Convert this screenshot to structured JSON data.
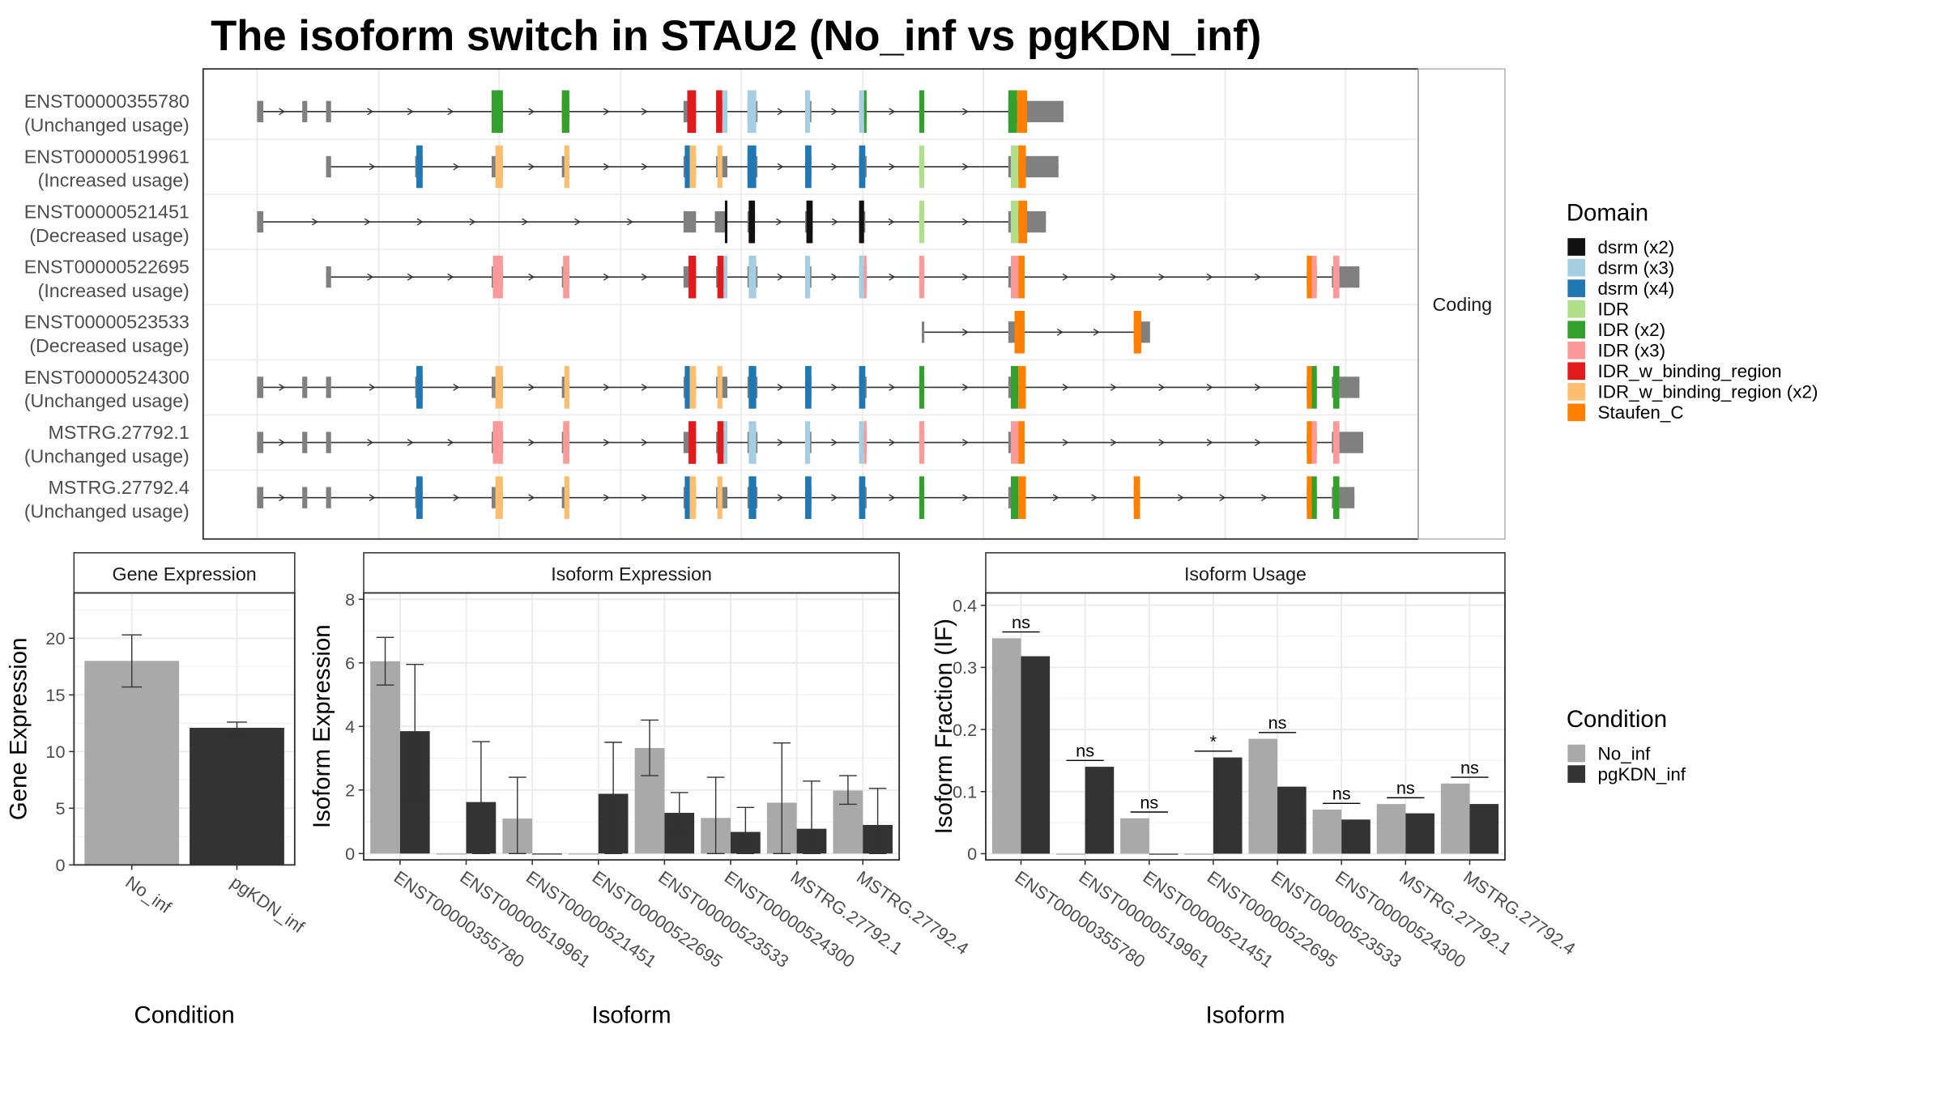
{
  "title": "The isoform switch in STAU2 (No_inf vs pgKDN_inf)",
  "colors": {
    "No_inf": "#a9a9a9",
    "pgKDN_inf": "#333333",
    "exon": "#808080"
  },
  "structure": {
    "facet_label": "Coding",
    "isoforms": [
      {
        "id": "ENST00000355780",
        "usage": "(Unchanged usage)",
        "start": 205,
        "end": 848,
        "exons": [
          [
            205,
            210
          ],
          [
            241,
            245
          ],
          [
            260,
            264
          ],
          [
            392,
            401
          ],
          [
            448,
            454
          ],
          [
            545,
            555
          ],
          [
            571,
            580
          ],
          [
            596,
            604
          ],
          [
            642,
            647
          ],
          [
            685,
            691
          ],
          [
            733,
            737
          ],
          [
            804,
            812
          ],
          [
            812,
            848
          ]
        ],
        "domains": [
          [
            392,
            401,
            "IDR (x2)"
          ],
          [
            448,
            454,
            "IDR (x2)"
          ],
          [
            548,
            555,
            "IDR_w_binding_region"
          ],
          [
            571,
            576,
            "IDR_w_binding_region"
          ],
          [
            576,
            580,
            "dsrm (x3)"
          ],
          [
            596,
            603,
            "dsrm (x3)"
          ],
          [
            642,
            646,
            "dsrm (x3)"
          ],
          [
            685,
            689,
            "dsrm (x3)"
          ],
          [
            689,
            691,
            "IDR (x2)"
          ],
          [
            733,
            737,
            "IDR (x2)"
          ],
          [
            804,
            811,
            "IDR (x2)"
          ],
          [
            811,
            819,
            "Staufen_C"
          ]
        ]
      },
      {
        "id": "ENST00000519961",
        "usage": "(Increased usage)",
        "start": 260,
        "end": 844,
        "exons": [
          [
            260,
            264
          ],
          [
            331,
            337
          ],
          [
            392,
            401
          ],
          [
            448,
            454
          ],
          [
            545,
            555
          ],
          [
            571,
            580
          ],
          [
            596,
            604
          ],
          [
            642,
            647
          ],
          [
            685,
            691
          ],
          [
            733,
            737
          ],
          [
            804,
            812
          ],
          [
            812,
            844
          ]
        ],
        "domains": [
          [
            332,
            337,
            "dsrm (x4)"
          ],
          [
            395,
            401,
            "IDR_w_binding_region (x2)"
          ],
          [
            450,
            454,
            "IDR_w_binding_region (x2)"
          ],
          [
            546,
            550,
            "dsrm (x4)"
          ],
          [
            550,
            555,
            "IDR_w_binding_region (x2)"
          ],
          [
            572,
            576,
            "IDR_w_binding_region (x2)"
          ],
          [
            596,
            603,
            "dsrm (x4)"
          ],
          [
            642,
            647,
            "dsrm (x4)"
          ],
          [
            685,
            690,
            "dsrm (x4)"
          ],
          [
            733,
            737,
            "IDR"
          ],
          [
            806,
            812,
            "IDR"
          ],
          [
            812,
            818,
            "Staufen_C"
          ]
        ]
      },
      {
        "id": "ENST00000521451",
        "usage": "(Decreased usage)",
        "start": 205,
        "end": 834,
        "exons": [
          [
            205,
            210
          ],
          [
            545,
            555
          ],
          [
            570,
            580
          ],
          [
            596,
            602
          ],
          [
            642,
            648
          ],
          [
            685,
            690
          ],
          [
            733,
            737
          ],
          [
            804,
            812
          ],
          [
            812,
            834
          ]
        ],
        "domains": [
          [
            578,
            580,
            "dsrm (x2)"
          ],
          [
            597,
            602,
            "dsrm (x2)"
          ],
          [
            643,
            648,
            "dsrm (x2)"
          ],
          [
            685,
            689,
            "dsrm (x2)"
          ],
          [
            733,
            737,
            "IDR"
          ],
          [
            806,
            812,
            "IDR"
          ],
          [
            812,
            819,
            "Staufen_C"
          ]
        ]
      },
      {
        "id": "ENST00000522695",
        "usage": "(Increased usage)",
        "start": 260,
        "end": 1084,
        "exons": [
          [
            260,
            264
          ],
          [
            392,
            401
          ],
          [
            448,
            454
          ],
          [
            545,
            555
          ],
          [
            571,
            580
          ],
          [
            596,
            604
          ],
          [
            642,
            647
          ],
          [
            685,
            691
          ],
          [
            733,
            737
          ],
          [
            804,
            812
          ],
          [
            1042,
            1050
          ],
          [
            1062,
            1068
          ],
          [
            1068,
            1084
          ]
        ],
        "domains": [
          [
            393,
            401,
            "IDR (x3)"
          ],
          [
            449,
            454,
            "IDR (x3)"
          ],
          [
            549,
            555,
            "IDR_w_binding_region"
          ],
          [
            572,
            577,
            "IDR_w_binding_region"
          ],
          [
            577,
            580,
            "dsrm (x3)"
          ],
          [
            597,
            603,
            "dsrm (x3)"
          ],
          [
            642,
            646,
            "dsrm (x3)"
          ],
          [
            685,
            689,
            "dsrm (x3)"
          ],
          [
            689,
            691,
            "IDR (x3)"
          ],
          [
            733,
            737,
            "IDR (x3)"
          ],
          [
            806,
            812,
            "IDR (x3)"
          ],
          [
            812,
            817,
            "Staufen_C"
          ],
          [
            1042,
            1046,
            "Staufen_C"
          ],
          [
            1046,
            1050,
            "IDR (x3)"
          ],
          [
            1063,
            1068,
            "IDR (x3)"
          ]
        ]
      },
      {
        "id": "ENST00000523533",
        "usage": "(Decreased usage)",
        "start": 735,
        "end": 917,
        "exons": [
          [
            735,
            737
          ],
          [
            804,
            812
          ],
          [
            812,
            817
          ],
          [
            904,
            910
          ],
          [
            910,
            917
          ]
        ],
        "domains": [
          [
            809,
            817,
            "Staufen_C"
          ],
          [
            904,
            910,
            "Staufen_C"
          ]
        ]
      },
      {
        "id": "ENST00000524300",
        "usage": "(Unchanged usage)",
        "start": 205,
        "end": 1084,
        "exons": [
          [
            205,
            210
          ],
          [
            241,
            245
          ],
          [
            260,
            264
          ],
          [
            331,
            337
          ],
          [
            392,
            401
          ],
          [
            448,
            454
          ],
          [
            545,
            555
          ],
          [
            571,
            580
          ],
          [
            596,
            604
          ],
          [
            642,
            647
          ],
          [
            685,
            691
          ],
          [
            733,
            737
          ],
          [
            804,
            812
          ],
          [
            1042,
            1050
          ],
          [
            1062,
            1068
          ],
          [
            1068,
            1084
          ]
        ],
        "domains": [
          [
            332,
            337,
            "dsrm (x4)"
          ],
          [
            395,
            401,
            "IDR_w_binding_region (x2)"
          ],
          [
            450,
            454,
            "IDR_w_binding_region (x2)"
          ],
          [
            546,
            550,
            "dsrm (x4)"
          ],
          [
            550,
            555,
            "IDR_w_binding_region (x2)"
          ],
          [
            572,
            576,
            "IDR_w_binding_region (x2)"
          ],
          [
            597,
            603,
            "dsrm (x4)"
          ],
          [
            642,
            647,
            "dsrm (x4)"
          ],
          [
            685,
            690,
            "dsrm (x4)"
          ],
          [
            733,
            737,
            "IDR (x2)"
          ],
          [
            806,
            812,
            "IDR (x2)"
          ],
          [
            812,
            818,
            "Staufen_C"
          ],
          [
            1042,
            1046,
            "Staufen_C"
          ],
          [
            1046,
            1050,
            "IDR (x2)"
          ],
          [
            1063,
            1068,
            "IDR (x2)"
          ]
        ]
      },
      {
        "id": "MSTRG.27792.1",
        "usage": "(Unchanged usage)",
        "start": 205,
        "end": 1087,
        "exons": [
          [
            205,
            210
          ],
          [
            241,
            245
          ],
          [
            260,
            264
          ],
          [
            392,
            401
          ],
          [
            448,
            454
          ],
          [
            545,
            555
          ],
          [
            571,
            580
          ],
          [
            596,
            604
          ],
          [
            642,
            647
          ],
          [
            685,
            691
          ],
          [
            733,
            737
          ],
          [
            804,
            812
          ],
          [
            1042,
            1050
          ],
          [
            1062,
            1068
          ],
          [
            1068,
            1087
          ]
        ],
        "domains": [
          [
            393,
            401,
            "IDR (x3)"
          ],
          [
            449,
            454,
            "IDR (x3)"
          ],
          [
            549,
            555,
            "IDR_w_binding_region"
          ],
          [
            572,
            577,
            "IDR_w_binding_region"
          ],
          [
            577,
            580,
            "dsrm (x3)"
          ],
          [
            597,
            603,
            "dsrm (x3)"
          ],
          [
            642,
            646,
            "dsrm (x3)"
          ],
          [
            685,
            689,
            "dsrm (x3)"
          ],
          [
            689,
            691,
            "IDR (x3)"
          ],
          [
            733,
            737,
            "IDR (x3)"
          ],
          [
            806,
            812,
            "IDR (x3)"
          ],
          [
            812,
            817,
            "Staufen_C"
          ],
          [
            1042,
            1046,
            "Staufen_C"
          ],
          [
            1046,
            1050,
            "IDR (x3)"
          ],
          [
            1063,
            1068,
            "IDR (x3)"
          ]
        ]
      },
      {
        "id": "MSTRG.27792.4",
        "usage": "(Unchanged usage)",
        "start": 205,
        "end": 1080,
        "exons": [
          [
            205,
            210
          ],
          [
            241,
            245
          ],
          [
            260,
            264
          ],
          [
            331,
            337
          ],
          [
            392,
            401
          ],
          [
            448,
            454
          ],
          [
            545,
            555
          ],
          [
            571,
            580
          ],
          [
            596,
            604
          ],
          [
            642,
            647
          ],
          [
            685,
            691
          ],
          [
            733,
            737
          ],
          [
            804,
            812
          ],
          [
            904,
            909
          ],
          [
            1042,
            1050
          ],
          [
            1062,
            1068
          ],
          [
            1068,
            1080
          ]
        ],
        "domains": [
          [
            332,
            337,
            "dsrm (x4)"
          ],
          [
            395,
            401,
            "IDR_w_binding_region (x2)"
          ],
          [
            450,
            454,
            "IDR_w_binding_region (x2)"
          ],
          [
            546,
            550,
            "dsrm (x4)"
          ],
          [
            550,
            555,
            "IDR_w_binding_region (x2)"
          ],
          [
            572,
            576,
            "IDR_w_binding_region (x2)"
          ],
          [
            597,
            603,
            "dsrm (x4)"
          ],
          [
            642,
            647,
            "dsrm (x4)"
          ],
          [
            685,
            690,
            "dsrm (x4)"
          ],
          [
            733,
            737,
            "IDR (x2)"
          ],
          [
            806,
            812,
            "IDR (x2)"
          ],
          [
            812,
            818,
            "Staufen_C"
          ],
          [
            904,
            909,
            "Staufen_C"
          ],
          [
            1042,
            1046,
            "Staufen_C"
          ],
          [
            1046,
            1050,
            "IDR (x2)"
          ],
          [
            1063,
            1068,
            "IDR (x2)"
          ]
        ]
      }
    ]
  },
  "legend_domain": {
    "title": "Domain",
    "items": [
      {
        "label": "dsrm (x2)",
        "color": "#111111"
      },
      {
        "label": "dsrm (x3)",
        "color": "#a6cee3"
      },
      {
        "label": "dsrm (x4)",
        "color": "#1f78b4"
      },
      {
        "label": "IDR",
        "color": "#b2df8a"
      },
      {
        "label": "IDR (x2)",
        "color": "#33a02c"
      },
      {
        "label": "IDR (x3)",
        "color": "#fb9a99"
      },
      {
        "label": "IDR_w_binding_region",
        "color": "#e31a1c"
      },
      {
        "label": "IDR_w_binding_region (x2)",
        "color": "#fdbf6f"
      },
      {
        "label": "Staufen_C",
        "color": "#ff7f00"
      }
    ]
  },
  "legend_condition": {
    "title": "Condition",
    "items": [
      {
        "label": "No_inf",
        "color": "#a9a9a9"
      },
      {
        "label": "pgKDN_inf",
        "color": "#333333"
      }
    ]
  },
  "chart_data": [
    {
      "type": "bar",
      "title": "Gene Expression",
      "xlabel": "Condition",
      "ylabel": "Gene Expression",
      "ylim": [
        0,
        24
      ],
      "yticks": [
        0,
        5,
        10,
        15,
        20
      ],
      "categories": [
        "No_inf",
        "pgKDN_inf"
      ],
      "values": [
        18.0,
        12.1
      ],
      "error_low": [
        15.7,
        11.5
      ],
      "error_high": [
        20.3,
        12.6
      ]
    },
    {
      "type": "bar",
      "title": "Isoform Expression",
      "xlabel": "Isoform",
      "ylabel": "Isoform Expression",
      "ylim": [
        -0.2,
        8.2
      ],
      "yticks": [
        0,
        2,
        4,
        6,
        8
      ],
      "categories": [
        "ENST00000355780",
        "ENST00000519961",
        "ENST00000521451",
        "ENST00000522695",
        "ENST00000523533",
        "ENST00000524300",
        "MSTRG.27792.1",
        "MSTRG.27792.4"
      ],
      "series": [
        {
          "name": "No_inf",
          "values": [
            6.05,
            0.0,
            1.1,
            0.0,
            3.32,
            1.12,
            1.6,
            1.98
          ],
          "error_low": [
            5.3,
            0.0,
            0.0,
            0.0,
            2.45,
            0.0,
            0.0,
            1.55
          ],
          "error_high": [
            6.8,
            0.0,
            2.4,
            0.0,
            4.2,
            2.4,
            3.48,
            2.45
          ]
        },
        {
          "name": "pgKDN_inf",
          "values": [
            3.85,
            1.62,
            0.0,
            1.88,
            1.28,
            0.68,
            0.78,
            0.9
          ],
          "error_low": [
            1.75,
            0.0,
            0.0,
            0.0,
            0.62,
            0.0,
            0.0,
            0.0
          ],
          "error_high": [
            5.95,
            3.52,
            0.0,
            3.5,
            1.92,
            1.45,
            2.28,
            2.05
          ]
        }
      ]
    },
    {
      "type": "bar",
      "title": "Isoform Usage",
      "xlabel": "Isoform",
      "ylabel": "Isoform Fraction (IF)",
      "ylim": [
        -0.01,
        0.42
      ],
      "yticks": [
        0.0,
        0.1,
        0.2,
        0.3,
        0.4
      ],
      "categories": [
        "ENST00000355780",
        "ENST00000519961",
        "ENST00000521451",
        "ENST00000522695",
        "ENST00000523533",
        "ENST00000524300",
        "MSTRG.27792.1",
        "MSTRG.27792.4"
      ],
      "series": [
        {
          "name": "No_inf",
          "values": [
            0.347,
            0.0,
            0.057,
            0.0,
            0.185,
            0.071,
            0.08,
            0.113
          ]
        },
        {
          "name": "pgKDN_inf",
          "values": [
            0.318,
            0.14,
            0.0,
            0.155,
            0.108,
            0.055,
            0.065,
            0.08
          ]
        }
      ],
      "significance": [
        "ns",
        "ns",
        "ns",
        "*",
        "ns",
        "ns",
        "ns",
        "ns"
      ]
    }
  ]
}
